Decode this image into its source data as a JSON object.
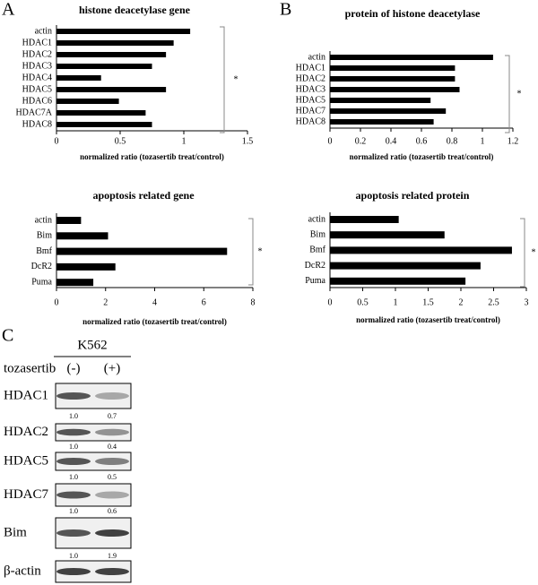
{
  "panel_labels": [
    "A",
    "B",
    "C"
  ],
  "chart_data": [
    {
      "type": "bar",
      "title": "histone deacetylase gene",
      "categories": [
        "actin",
        "HDAC1",
        "HDAC2",
        "HDAC3",
        "HDAC4",
        "HDAC5",
        "HDAC6",
        "HDAC7A",
        "HDAC8"
      ],
      "values": [
        1.05,
        0.92,
        0.86,
        0.75,
        0.35,
        0.86,
        0.49,
        0.7,
        0.75
      ],
      "xlim": [
        0,
        1.5
      ],
      "xticks": [
        0,
        0.5,
        1,
        1.5
      ],
      "x_label": "normalized ratio (tozasertib treat/control)",
      "annotation": "*",
      "color": "#000000"
    },
    {
      "type": "bar",
      "title": "protein of histone deacetylase",
      "categories": [
        "actin",
        "HDAC1",
        "HDAC2",
        "HDAC3",
        "HDAC5",
        "HDAC7",
        "HDAC8"
      ],
      "values": [
        1.07,
        0.82,
        0.82,
        0.85,
        0.66,
        0.76,
        0.68
      ],
      "xlim": [
        0,
        1.2
      ],
      "xticks": [
        0,
        0.2,
        0.4,
        0.6,
        0.8,
        1,
        1.2
      ],
      "x_label": "normalized ratio (tozasertib treat/control)",
      "annotation": "*",
      "color": "#000000"
    },
    {
      "type": "bar",
      "title": "apoptosis related gene",
      "categories": [
        "actin",
        "Bim",
        "Bmf",
        "DcR2",
        "Puma"
      ],
      "values": [
        1.0,
        2.1,
        6.95,
        2.4,
        1.5
      ],
      "xlim": [
        0,
        8
      ],
      "xticks": [
        0,
        2,
        4,
        6,
        8
      ],
      "x_label": "normalized ratio (tozasertib treat/control)",
      "annotation": "*",
      "color": "#000000"
    },
    {
      "type": "bar",
      "title": "apoptosis related protein",
      "categories": [
        "actin",
        "Bim",
        "Bmf",
        "DcR2",
        "Puma"
      ],
      "values": [
        1.05,
        1.75,
        2.78,
        2.3,
        2.07
      ],
      "xlim": [
        0,
        3
      ],
      "xticks": [
        0,
        0.5,
        1,
        1.5,
        2,
        2.5,
        3
      ],
      "x_label": "normalized ratio (tozasertib treat/control)",
      "annotation": "*",
      "color": "#000000"
    }
  ],
  "blot": {
    "cell_line": "K562",
    "treatment_label": "tozasertib",
    "lanes": [
      "(-)",
      "(+)"
    ],
    "rows": [
      {
        "label": "HDAC1",
        "ratios": [
          "1.0",
          "0.7"
        ]
      },
      {
        "label": "HDAC2",
        "ratios": [
          "1.0",
          "0.4"
        ]
      },
      {
        "label": "HDAC5",
        "ratios": [
          "1.0",
          "0.5"
        ]
      },
      {
        "label": "HDAC7",
        "ratios": [
          "1.0",
          "0.6"
        ]
      },
      {
        "label": "Bim",
        "ratios": [
          "1.0",
          "1.9"
        ]
      },
      {
        "label": "β-actin"
      }
    ]
  }
}
